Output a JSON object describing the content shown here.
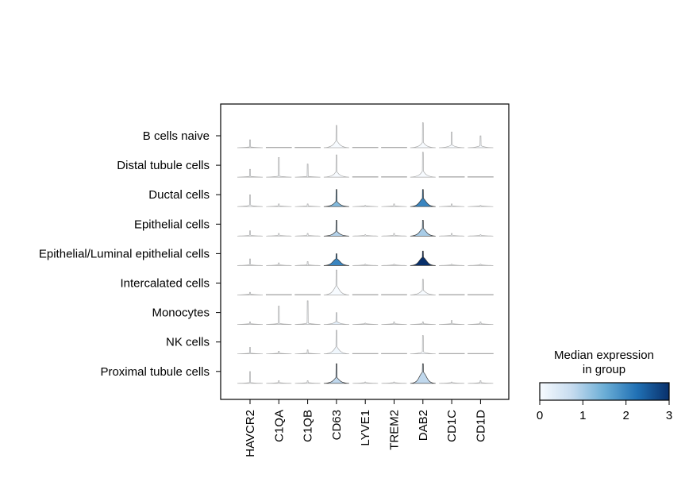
{
  "chart_data": {
    "type": "stacked-violin",
    "genes": [
      "HAVCR2",
      "C1QA",
      "C1QB",
      "CD63",
      "LYVE1",
      "TREM2",
      "DAB2",
      "CD1C",
      "CD1D"
    ],
    "groups": [
      "B cells naive",
      "Distal tubule cells",
      "Ductal cells",
      "Epithelial cells",
      "Epithelial/Luminal epithelial cells",
      "Intercalated cells",
      "Monocytes",
      "NK cells",
      "Proximal tubule cells"
    ],
    "median_expression": [
      [
        0.05,
        0.0,
        0.0,
        0.0,
        0.0,
        0.0,
        0.0,
        0.0,
        0.0
      ],
      [
        0.0,
        0.0,
        0.0,
        0.0,
        0.0,
        0.0,
        0.0,
        0.0,
        0.0
      ],
      [
        0.0,
        0.0,
        0.0,
        1.3,
        0.0,
        0.0,
        2.0,
        0.0,
        0.0
      ],
      [
        0.0,
        0.0,
        0.0,
        0.9,
        0.0,
        0.0,
        1.0,
        0.0,
        0.0
      ],
      [
        0.0,
        0.0,
        0.0,
        2.0,
        0.0,
        0.0,
        3.0,
        0.0,
        0.0
      ],
      [
        0.0,
        0.0,
        0.0,
        0.0,
        0.0,
        0.0,
        0.0,
        0.0,
        0.0
      ],
      [
        0.0,
        0.0,
        0.0,
        0.3,
        0.0,
        0.0,
        0.0,
        0.0,
        0.0
      ],
      [
        0.0,
        0.0,
        0.0,
        0.1,
        0.0,
        0.0,
        0.0,
        0.0,
        0.0
      ],
      [
        0.0,
        0.0,
        0.0,
        0.8,
        0.0,
        0.0,
        0.8,
        0.0,
        0.0
      ]
    ],
    "violin_shape": [
      [
        [
          0.3,
          0.15
        ],
        [
          0,
          0
        ],
        [
          0,
          0
        ],
        [
          0.85,
          0.5
        ],
        [
          0,
          0
        ],
        [
          0,
          0
        ],
        [
          0.95,
          0.35
        ],
        [
          0.6,
          0.3
        ],
        [
          0.45,
          0.3
        ]
      ],
      [
        [
          0.3,
          0.1
        ],
        [
          0.75,
          0.1
        ],
        [
          0.5,
          0.1
        ],
        [
          0.85,
          0.4
        ],
        [
          0,
          0
        ],
        [
          0,
          0
        ],
        [
          0.95,
          0.4
        ],
        [
          0,
          0
        ],
        [
          0,
          0
        ]
      ],
      [
        [
          0.45,
          0.2
        ],
        [
          0.1,
          0.1
        ],
        [
          0.1,
          0.1
        ],
        [
          0.65,
          0.5
        ],
        [
          0.05,
          0.05
        ],
        [
          0.1,
          0.1
        ],
        [
          0.65,
          0.8
        ],
        [
          0.1,
          0.1
        ],
        [
          0.05,
          0.05
        ]
      ],
      [
        [
          0.2,
          0.1
        ],
        [
          0.1,
          0.1
        ],
        [
          0.1,
          0.1
        ],
        [
          0.6,
          0.5
        ],
        [
          0.05,
          0.05
        ],
        [
          0.1,
          0.1
        ],
        [
          0.6,
          0.8
        ],
        [
          0.1,
          0.1
        ],
        [
          0.05,
          0.05
        ]
      ],
      [
        [
          0.25,
          0.2
        ],
        [
          0.1,
          0.1
        ],
        [
          0.15,
          0.1
        ],
        [
          0.45,
          0.95
        ],
        [
          0.05,
          0.1
        ],
        [
          0.05,
          0.1
        ],
        [
          0.55,
          0.95
        ],
        [
          0.05,
          0.1
        ],
        [
          0.05,
          0.1
        ]
      ],
      [
        [
          0.1,
          0.1
        ],
        [
          0,
          0
        ],
        [
          0,
          0
        ],
        [
          0.95,
          0.6
        ],
        [
          0,
          0
        ],
        [
          0,
          0
        ],
        [
          0.6,
          0.5
        ],
        [
          0,
          0
        ],
        [
          0,
          0
        ]
      ],
      [
        [
          0.1,
          0.1
        ],
        [
          0.7,
          0.1
        ],
        [
          0.9,
          0.1
        ],
        [
          0.45,
          0.4
        ],
        [
          0.05,
          0.05
        ],
        [
          0.1,
          0.1
        ],
        [
          0.1,
          0.15
        ],
        [
          0.15,
          0.1
        ],
        [
          0.1,
          0.1
        ]
      ],
      [
        [
          0.25,
          0.1
        ],
        [
          0.1,
          0.1
        ],
        [
          0.15,
          0.1
        ],
        [
          0.9,
          0.5
        ],
        [
          0,
          0
        ],
        [
          0,
          0
        ],
        [
          0.7,
          0.2
        ],
        [
          0,
          0
        ],
        [
          0,
          0
        ]
      ],
      [
        [
          0.45,
          0.1
        ],
        [
          0.1,
          0.1
        ],
        [
          0.1,
          0.1
        ],
        [
          0.75,
          0.5
        ],
        [
          0.05,
          0.05
        ],
        [
          0.05,
          0.05
        ],
        [
          0.75,
          0.95
        ],
        [
          0.05,
          0.05
        ],
        [
          0.1,
          0.1
        ]
      ]
    ],
    "colorbar": {
      "title_line1": "Median expression",
      "title_line2": "in group",
      "range": [
        0,
        3
      ],
      "ticks": [
        "0",
        "1",
        "2",
        "3"
      ],
      "colormap": "Blues",
      "colors": [
        "#f7fbff",
        "#c6dbef",
        "#6baed6",
        "#2171b5",
        "#08306b"
      ]
    },
    "grid": false,
    "legend_placement": "bottom-right"
  }
}
